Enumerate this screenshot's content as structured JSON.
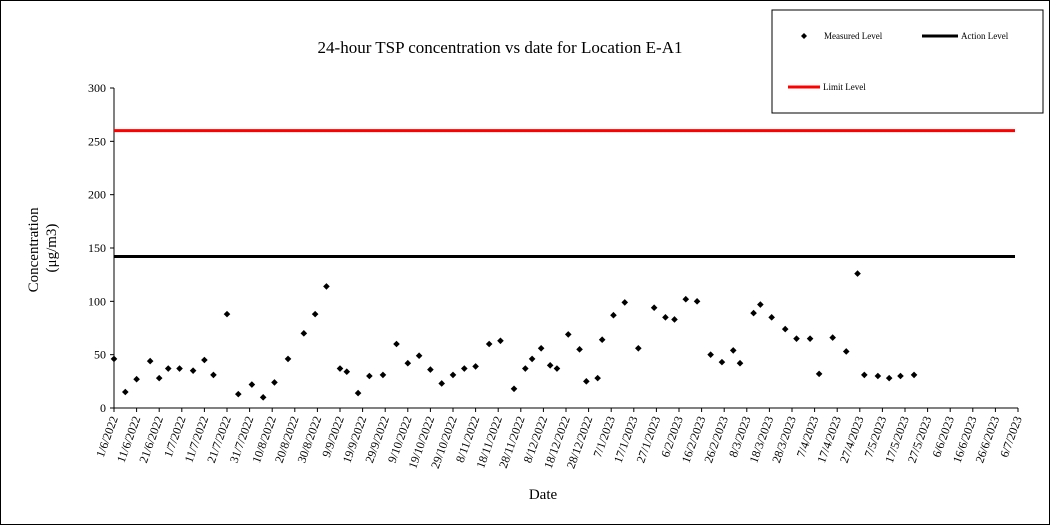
{
  "chart_data": {
    "type": "scatter",
    "title": "24-hour TSP concentration vs date for Location E-A1",
    "xlabel": "Date",
    "ylabel_lines": [
      "Concentration",
      "(μg/m3)"
    ],
    "ylim": [
      0,
      300
    ],
    "yticks": [
      0,
      50,
      100,
      150,
      200,
      250,
      300
    ],
    "xlim": [
      "2022-06-01",
      "2023-07-06"
    ],
    "xticks": [
      "1/6/2022",
      "11/6/2022",
      "21/6/2022",
      "1/7/2022",
      "11/7/2022",
      "21/7/2022",
      "31/7/2022",
      "10/8/2022",
      "20/8/2022",
      "30/8/2022",
      "9/9/2022",
      "19/9/2022",
      "29/9/2022",
      "9/10/2022",
      "19/10/2022",
      "29/10/2022",
      "8/11/2022",
      "18/11/2022",
      "28/11/2022",
      "8/12/2022",
      "18/12/2022",
      "28/12/2022",
      "7/1/2023",
      "17/1/2023",
      "27/1/2023",
      "6/2/2023",
      "16/2/2023",
      "26/2/2023",
      "8/3/2023",
      "18/3/2023",
      "28/3/2023",
      "7/4/2023",
      "17/4/2023",
      "27/4/2023",
      "7/5/2023",
      "17/5/2023",
      "27/5/2023",
      "6/6/2023",
      "16/6/2023",
      "26/6/2023",
      "6/7/2023"
    ],
    "grid": false,
    "legend_position": "top-right",
    "series": [
      {
        "name": "Measured Level",
        "marker": "diamond",
        "color": "#000000",
        "points": [
          {
            "x": "2022-06-01",
            "y": 46
          },
          {
            "x": "2022-06-06",
            "y": 15
          },
          {
            "x": "2022-06-11",
            "y": 27
          },
          {
            "x": "2022-06-17",
            "y": 44
          },
          {
            "x": "2022-06-21",
            "y": 28
          },
          {
            "x": "2022-06-25",
            "y": 37
          },
          {
            "x": "2022-06-30",
            "y": 37
          },
          {
            "x": "2022-07-06",
            "y": 35
          },
          {
            "x": "2022-07-11",
            "y": 45
          },
          {
            "x": "2022-07-15",
            "y": 31
          },
          {
            "x": "2022-07-21",
            "y": 88
          },
          {
            "x": "2022-07-26",
            "y": 13
          },
          {
            "x": "2022-08-01",
            "y": 22
          },
          {
            "x": "2022-08-06",
            "y": 10
          },
          {
            "x": "2022-08-11",
            "y": 24
          },
          {
            "x": "2022-08-17",
            "y": 46
          },
          {
            "x": "2022-08-24",
            "y": 70
          },
          {
            "x": "2022-08-29",
            "y": 88
          },
          {
            "x": "2022-09-03",
            "y": 114
          },
          {
            "x": "2022-09-09",
            "y": 37
          },
          {
            "x": "2022-09-12",
            "y": 34
          },
          {
            "x": "2022-09-17",
            "y": 14
          },
          {
            "x": "2022-09-22",
            "y": 30
          },
          {
            "x": "2022-09-28",
            "y": 31
          },
          {
            "x": "2022-10-04",
            "y": 60
          },
          {
            "x": "2022-10-09",
            "y": 42
          },
          {
            "x": "2022-10-14",
            "y": 49
          },
          {
            "x": "2022-10-19",
            "y": 36
          },
          {
            "x": "2022-10-24",
            "y": 23
          },
          {
            "x": "2022-10-29",
            "y": 31
          },
          {
            "x": "2022-11-03",
            "y": 37
          },
          {
            "x": "2022-11-08",
            "y": 39
          },
          {
            "x": "2022-11-14",
            "y": 60
          },
          {
            "x": "2022-11-19",
            "y": 63
          },
          {
            "x": "2022-11-25",
            "y": 18
          },
          {
            "x": "2022-11-30",
            "y": 37
          },
          {
            "x": "2022-12-03",
            "y": 46
          },
          {
            "x": "2022-12-07",
            "y": 56
          },
          {
            "x": "2022-12-11",
            "y": 40
          },
          {
            "x": "2022-12-14",
            "y": 37
          },
          {
            "x": "2022-12-19",
            "y": 69
          },
          {
            "x": "2022-12-24",
            "y": 55
          },
          {
            "x": "2022-12-27",
            "y": 25
          },
          {
            "x": "2023-01-01",
            "y": 28
          },
          {
            "x": "2023-01-03",
            "y": 64
          },
          {
            "x": "2023-01-08",
            "y": 87
          },
          {
            "x": "2023-01-13",
            "y": 99
          },
          {
            "x": "2023-01-19",
            "y": 56
          },
          {
            "x": "2023-01-26",
            "y": 94
          },
          {
            "x": "2023-01-31",
            "y": 85
          },
          {
            "x": "2023-02-04",
            "y": 83
          },
          {
            "x": "2023-02-09",
            "y": 102
          },
          {
            "x": "2023-02-14",
            "y": 100
          },
          {
            "x": "2023-02-20",
            "y": 50
          },
          {
            "x": "2023-02-25",
            "y": 43
          },
          {
            "x": "2023-03-02",
            "y": 54
          },
          {
            "x": "2023-03-05",
            "y": 42
          },
          {
            "x": "2023-03-11",
            "y": 89
          },
          {
            "x": "2023-03-14",
            "y": 97
          },
          {
            "x": "2023-03-19",
            "y": 85
          },
          {
            "x": "2023-03-25",
            "y": 74
          },
          {
            "x": "2023-03-30",
            "y": 65
          },
          {
            "x": "2023-04-05",
            "y": 65
          },
          {
            "x": "2023-04-09",
            "y": 32
          },
          {
            "x": "2023-04-15",
            "y": 66
          },
          {
            "x": "2023-04-21",
            "y": 53
          },
          {
            "x": "2023-04-26",
            "y": 126
          },
          {
            "x": "2023-04-29",
            "y": 31
          },
          {
            "x": "2023-05-05",
            "y": 30
          },
          {
            "x": "2023-05-10",
            "y": 28
          },
          {
            "x": "2023-05-15",
            "y": 30
          },
          {
            "x": "2023-05-21",
            "y": 31
          }
        ]
      },
      {
        "name": "Action Level",
        "type": "line",
        "color": "#000000",
        "y": 142
      },
      {
        "name": "Limit Level",
        "type": "line",
        "color": "#ff0000",
        "y": 260
      }
    ]
  }
}
